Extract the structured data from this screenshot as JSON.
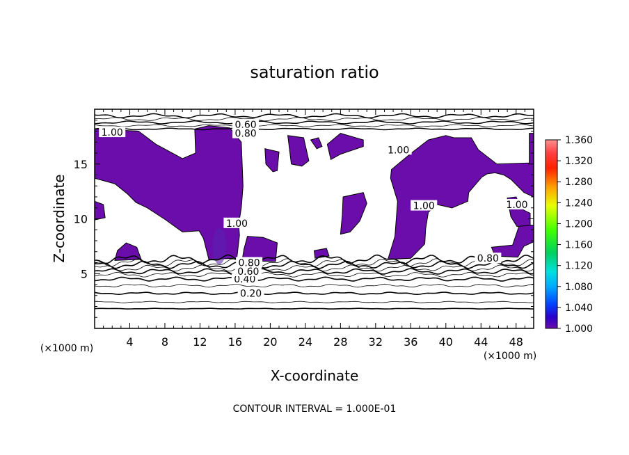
{
  "chart_data": {
    "type": "heatmap",
    "title": "saturation ratio",
    "xlabel": "X-coordinate",
    "ylabel": "Z-coordinate",
    "x_unit": "(×1000 m)",
    "y_unit": "(×1000 m)",
    "xlim": [
      0,
      50
    ],
    "ylim": [
      0,
      20
    ],
    "x_ticks": [
      4,
      8,
      12,
      16,
      20,
      24,
      28,
      32,
      36,
      40,
      44,
      48
    ],
    "y_ticks": [
      5,
      10,
      15
    ],
    "footer": "CONTOUR INTERVAL = 1.000E-01",
    "colorbar": {
      "min": 1.0,
      "max": 1.36,
      "labels": [
        "1.360",
        "1.320",
        "1.280",
        "1.240",
        "1.200",
        "1.160",
        "1.120",
        "1.080",
        "1.040",
        "1.000"
      ]
    },
    "contour_labels": [
      "0.20",
      "0.40",
      "0.60",
      "0.80",
      "1.00"
    ],
    "contour_levels": [
      {
        "label": "0.20",
        "z": 3.2,
        "x": 17.8
      },
      {
        "label": "0.40",
        "z": 4.5,
        "x": 17.1
      },
      {
        "label": "0.60",
        "z": 5.2,
        "x": 17.5
      },
      {
        "label": "0.80",
        "z": 6.0,
        "x": 17.6
      },
      {
        "label": "0.60",
        "z": 18.6,
        "x": 17.2
      },
      {
        "label": "0.80",
        "z": 17.8,
        "x": 17.2
      },
      {
        "label": "0.80",
        "z": 6.4,
        "x": 44.8
      },
      {
        "label": "1.00",
        "z": 17.9,
        "x": 2.0
      },
      {
        "label": "1.00",
        "z": 16.3,
        "x": 34.6
      },
      {
        "label": "1.00",
        "z": 9.6,
        "x": 16.2
      },
      {
        "label": "1.00",
        "z": 11.2,
        "x": 37.5
      },
      {
        "label": "1.00",
        "z": 11.3,
        "x": 48.1
      }
    ],
    "supersaturated_regions": [
      {
        "name": "left",
        "outline": [
          [
            0,
            18.2
          ],
          [
            5,
            18.0
          ],
          [
            7,
            16.8
          ],
          [
            10,
            15.5
          ],
          [
            11.5,
            16.0
          ],
          [
            11.4,
            18.2
          ],
          [
            13,
            18.5
          ],
          [
            15.4,
            18.3
          ],
          [
            16.1,
            17.6
          ],
          [
            16.7,
            17.0
          ],
          [
            16.9,
            13.0
          ],
          [
            16.7,
            11.0
          ],
          [
            16.4,
            9.5
          ],
          [
            16.5,
            8.5
          ],
          [
            16.2,
            6.4
          ],
          [
            13.0,
            6.3
          ],
          [
            12.4,
            8.2
          ],
          [
            11.9,
            8.9
          ],
          [
            10.0,
            8.8
          ],
          [
            8.1,
            9.9
          ],
          [
            6.0,
            11.0
          ],
          [
            4.7,
            11.5
          ],
          [
            3.7,
            12.3
          ],
          [
            2.3,
            13.2
          ],
          [
            0,
            13.7
          ]
        ]
      },
      {
        "name": "left-lower-island",
        "outline": [
          [
            2.3,
            6.2
          ],
          [
            5.3,
            6.3
          ],
          [
            4.8,
            7.4
          ],
          [
            3.6,
            7.8
          ],
          [
            2.6,
            7.1
          ]
        ]
      },
      {
        "name": "left-edge-island",
        "outline": [
          [
            0,
            11.6
          ],
          [
            1.0,
            11.3
          ],
          [
            1.2,
            10.1
          ],
          [
            0,
            9.9
          ]
        ]
      },
      {
        "name": "mid-bump",
        "outline": [
          [
            16.8,
            6.2
          ],
          [
            20.6,
            6.1
          ],
          [
            20.8,
            7.8
          ],
          [
            19.2,
            8.3
          ],
          [
            17.4,
            8.4
          ],
          [
            17.0,
            7.2
          ]
        ]
      },
      {
        "name": "ridge-a",
        "outline": [
          [
            19.4,
            16.4
          ],
          [
            21.0,
            16.1
          ],
          [
            20.8,
            14.4
          ],
          [
            20.3,
            14.3
          ],
          [
            19.5,
            15.0
          ]
        ]
      },
      {
        "name": "ridge-b",
        "outline": [
          [
            22.0,
            17.6
          ],
          [
            23.8,
            17.4
          ],
          [
            24.4,
            15.3
          ],
          [
            23.6,
            14.8
          ],
          [
            22.4,
            15.0
          ]
        ]
      },
      {
        "name": "ridge-c",
        "outline": [
          [
            24.6,
            17.2
          ],
          [
            25.5,
            17.4
          ],
          [
            25.9,
            16.6
          ],
          [
            25.3,
            16.4
          ]
        ]
      },
      {
        "name": "ridge-d",
        "outline": [
          [
            26.5,
            16.8
          ],
          [
            28.0,
            17.8
          ],
          [
            30.6,
            17.2
          ],
          [
            30.6,
            16.6
          ],
          [
            28.0,
            15.9
          ],
          [
            26.9,
            15.4
          ]
        ]
      },
      {
        "name": "small-center",
        "outline": [
          [
            25.0,
            7.1
          ],
          [
            26.4,
            7.3
          ],
          [
            26.7,
            6.6
          ],
          [
            25.1,
            6.4
          ]
        ]
      },
      {
        "name": "center",
        "outline": [
          [
            28.3,
            12.0
          ],
          [
            30.6,
            12.4
          ],
          [
            31.0,
            11.4
          ],
          [
            30.2,
            9.8
          ],
          [
            29.1,
            8.8
          ],
          [
            28.0,
            8.6
          ],
          [
            28.2,
            10.3
          ]
        ]
      },
      {
        "name": "right-main",
        "outline": [
          [
            33.8,
            14.5
          ],
          [
            35.9,
            15.9
          ],
          [
            38.0,
            17.2
          ],
          [
            40.0,
            17.6
          ],
          [
            40.9,
            17.4
          ],
          [
            42.9,
            17.4
          ],
          [
            43.7,
            16.3
          ],
          [
            45.8,
            15.0
          ],
          [
            49.5,
            15.1
          ],
          [
            49.5,
            17.8
          ],
          [
            50.0,
            17.8
          ],
          [
            50.0,
            12.0
          ],
          [
            48.9,
            12.4
          ],
          [
            47.4,
            13.6
          ],
          [
            46.6,
            14.0
          ],
          [
            45.6,
            14.2
          ],
          [
            44.7,
            14.1
          ],
          [
            44.1,
            13.8
          ],
          [
            42.6,
            12.4
          ],
          [
            42.5,
            11.6
          ],
          [
            40.7,
            11.0
          ],
          [
            39.0,
            11.3
          ],
          [
            38.0,
            10.6
          ],
          [
            37.7,
            9.1
          ],
          [
            37.6,
            7.7
          ],
          [
            36.0,
            6.4
          ],
          [
            33.4,
            6.3
          ],
          [
            34.2,
            8.4
          ],
          [
            34.5,
            11.6
          ],
          [
            33.7,
            13.7
          ]
        ]
      },
      {
        "name": "right-islands",
        "outline": [
          [
            45.2,
            7.4
          ],
          [
            47.6,
            7.6
          ],
          [
            48.4,
            9.5
          ],
          [
            50.0,
            9.4
          ],
          [
            50.0,
            7.9
          ],
          [
            48.9,
            7.5
          ],
          [
            48.2,
            6.5
          ],
          [
            45.6,
            6.6
          ]
        ]
      },
      {
        "name": "right-strip",
        "outline": [
          [
            47.0,
            11.9
          ],
          [
            48.0,
            12.0
          ],
          [
            48.6,
            10.9
          ],
          [
            49.6,
            10.5
          ],
          [
            49.6,
            9.4
          ],
          [
            48.1,
            9.3
          ],
          [
            47.4,
            10.2
          ]
        ]
      }
    ]
  }
}
